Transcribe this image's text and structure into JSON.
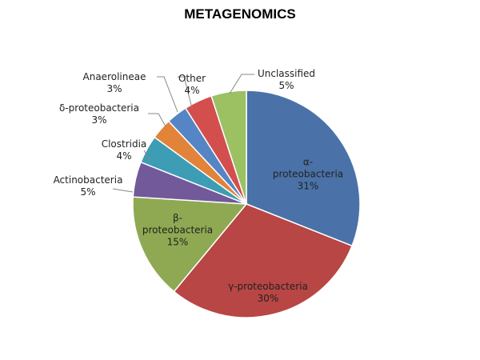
{
  "chart_data": {
    "type": "pie",
    "title": "METAGENOMICS",
    "categories": [
      "α-proteobacteria",
      "γ-proteobacteria",
      "β-proteobacteria",
      "Actinobacteria",
      "Clostridia",
      "δ-proteobacteria",
      "Anaerolineae",
      "Other",
      "Unclassified"
    ],
    "values": [
      31,
      30,
      15,
      5,
      4,
      3,
      3,
      4,
      5
    ],
    "value_labels": [
      "31%",
      "30%",
      "15%",
      "5%",
      "4%",
      "3%",
      "3%",
      "4%",
      "5%"
    ],
    "colors": [
      "#4a72a8",
      "#b84644",
      "#8fa953",
      "#72599a",
      "#3d9db4",
      "#e2833a",
      "#5585c4",
      "#d24f4e",
      "#9bc163"
    ]
  }
}
